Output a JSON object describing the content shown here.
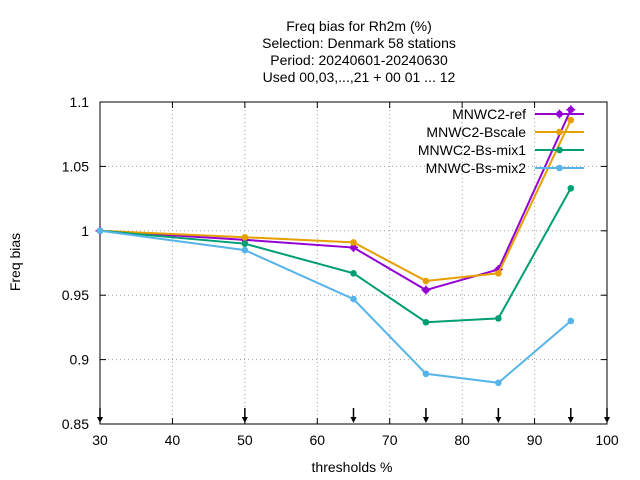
{
  "chart_data": {
    "type": "line",
    "title_lines": [
      "Freq bias  for Rh2m (%)",
      "Selection: Denmark     58 stations",
      "Period: 20240601-20240630",
      "Used 00,03,...,21 + 00 01 ... 12"
    ],
    "xlabel": "thresholds %",
    "ylabel": "Freq bias",
    "xlim": [
      30,
      100
    ],
    "ylim": [
      0.85,
      1.1
    ],
    "xticks": [
      30,
      40,
      50,
      60,
      70,
      80,
      90,
      100
    ],
    "xtick_labels": [
      "30",
      "40",
      "50",
      "60",
      "70",
      "80",
      "90",
      "100"
    ],
    "yticks": [
      0.85,
      0.9,
      0.95,
      1.0,
      1.05,
      1.1
    ],
    "ytick_labels": [
      "0.85",
      "0.9",
      "0.95",
      "1",
      "1.05",
      "1.1"
    ],
    "grid": true,
    "legend_position": "top-right",
    "threshold_markers_x": [
      30,
      50,
      65,
      75,
      85,
      95,
      100
    ],
    "x": [
      30,
      50,
      65,
      75,
      85,
      95
    ],
    "series": [
      {
        "name": "MNWC2-ref",
        "color": "#9400d3",
        "marker": "plus-circle",
        "values": [
          1.0,
          0.993,
          0.987,
          0.954,
          0.97,
          1.094
        ]
      },
      {
        "name": "MNWC2-Bscale",
        "color": "#e69f00",
        "marker": "circle",
        "values": [
          1.0,
          0.995,
          0.991,
          0.961,
          0.967,
          1.086
        ]
      },
      {
        "name": "MNWC2-Bs-mix1",
        "color": "#009e73",
        "marker": "circle",
        "values": [
          1.0,
          0.99,
          0.967,
          0.929,
          0.932,
          1.033
        ]
      },
      {
        "name": "MNWC-Bs-mix2",
        "color": "#56b4e9",
        "marker": "circle",
        "values": [
          1.0,
          0.985,
          0.947,
          0.889,
          0.882,
          0.93
        ]
      }
    ]
  }
}
